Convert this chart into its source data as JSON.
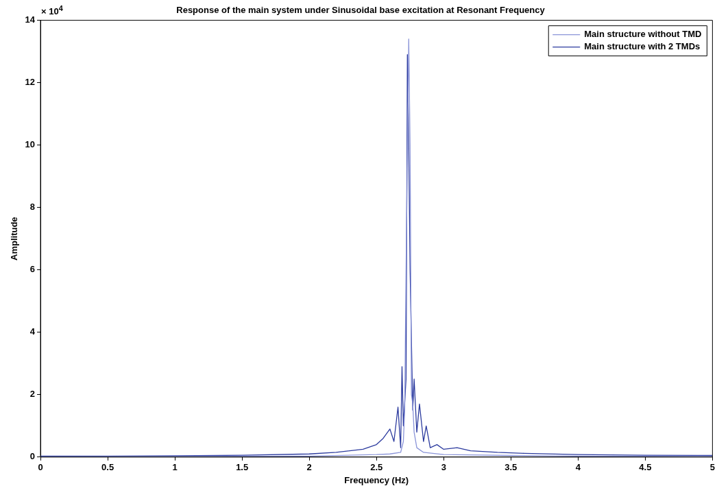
{
  "chart_data": {
    "type": "line",
    "title": "Response of the main system under Sinusoidal base excitation at Resonant Frequency",
    "xlabel": "Frequency (Hz)",
    "ylabel": "Amplitude",
    "annotations": [
      "× 10$^{4}$"
    ],
    "xlim": [
      0,
      5
    ],
    "xticks": [
      0,
      0.5,
      1,
      1.5,
      2,
      2.5,
      3,
      3.5,
      4,
      4.5,
      5
    ],
    "ylim": [
      0,
      14
    ],
    "yticks": [
      0,
      2,
      4,
      6,
      8,
      10,
      12,
      14
    ],
    "grid": false,
    "legend": "top right",
    "marker": "none",
    "line_style": "solid",
    "series": [
      {
        "name": "Main structure without TMD",
        "color": "#8a94d8",
        "x": [
          0,
          1,
          2,
          2.5,
          2.6,
          2.68,
          2.7,
          2.71,
          2.72,
          2.74,
          2.75,
          2.76,
          2.77,
          2.78,
          2.8,
          2.85,
          3,
          3.5,
          4,
          5
        ],
        "values": [
          0.01,
          0.02,
          0.03,
          0.08,
          0.1,
          0.15,
          0.5,
          1.5,
          6,
          13.4,
          10,
          2,
          1.7,
          0.8,
          0.3,
          0.15,
          0.08,
          0.05,
          0.03,
          0.02
        ]
      },
      {
        "name": "Main structure with 2 TMDs",
        "color": "#2b3a9e",
        "x": [
          0,
          0.5,
          1,
          1.5,
          2,
          2.2,
          2.4,
          2.5,
          2.55,
          2.6,
          2.63,
          2.66,
          2.68,
          2.69,
          2.7,
          2.72,
          2.73,
          2.74,
          2.75,
          2.77,
          2.78,
          2.8,
          2.82,
          2.85,
          2.87,
          2.9,
          2.95,
          3,
          3.1,
          3.2,
          3.4,
          3.6,
          4,
          4.5,
          5
        ],
        "values": [
          0.03,
          0.03,
          0.04,
          0.06,
          0.1,
          0.15,
          0.25,
          0.4,
          0.6,
          0.9,
          0.5,
          1.6,
          0.3,
          2.9,
          1,
          2.5,
          12.9,
          10,
          6,
          1.5,
          2.5,
          0.8,
          1.7,
          0.5,
          1,
          0.3,
          0.4,
          0.25,
          0.3,
          0.2,
          0.15,
          0.12,
          0.08,
          0.06,
          0.05
        ]
      }
    ]
  }
}
